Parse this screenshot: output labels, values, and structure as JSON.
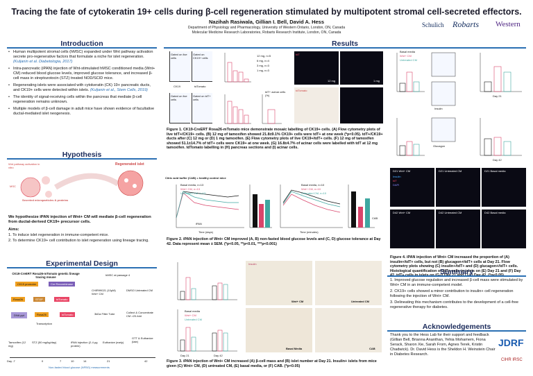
{
  "header": {
    "title": "Tracing the fate of cytokeratin 19+ cells during β-cell regeneration stimulated by multipotent stromal cell-secreted effectors.",
    "authors": "Nazihah Rasiwala, Gillian I. Bell, David A. Hess",
    "affiliation1": "Department of Physiology and Pharmacology, University of Western Ontario, London, ON, Canada",
    "affiliation2": "Molecular Medicine Research Laboratories, Robarts Research Institute, London, ON, Canada",
    "logos": [
      "Schulich",
      "Robarts",
      "Western"
    ]
  },
  "sections": {
    "introduction": "Introduction",
    "hypothesis": "Hypothesis",
    "experimental_design": "Experimental Design",
    "results": "Results",
    "summary": "Summary",
    "acknowledgements": "Acknowledgements"
  },
  "introduction": {
    "bullets": [
      "Human multipotent stromal cells (hMSC) expanded under Wnt pathway activation secrete pro-regenerative factors that formulate a niche for islet regeneration.",
      "Intra-pancreatic (iPAN) injection of Wnt-stimulated hMSC conditioned media (Wnt+ CM) reduced blood glucose levels, improved glucose tolerance, and increased β-cell mass in streptozotocin (STZ) treated NOD/SCID mice.",
      "Regenerating islets were associated with cytokeratin (CK) 19+ pancreatic ducts, and CK19+ cells were detected within islets.",
      "The identity of signal-receiving cells within the pancreas that mediate β-cell regeneration remains unknown.",
      "Multiple models of β-cell damage in adult mice have shown evidence of facultative ductal-mediated islet neogenesis."
    ],
    "refs": [
      "(Kuljanin et al. Diabetologia, 2017)",
      "(Kuljanin et al., Stem Cells, 2019)"
    ]
  },
  "hypothesis": {
    "diagram_labels": [
      "Wnt pathway activation in vitro",
      "MSC",
      "Secreted microparticles & proteins",
      "Regenerated islet"
    ],
    "statement": "We hypothesize iPAN injection of Wnt+ CM will mediate β-cell regeneration from ductal-derived CK19+ precursor cells.",
    "aims_title": "Aims:",
    "aims": [
      "1.  To induce islet regeneration in immune-competent mice.",
      "2.  To determine CK19+ cell contribution to islet regeneration using lineage tracing."
    ]
  },
  "exp_design": {
    "mouse_title": "CK19-CreERT Rosa26-mTomato genetic lineage tracing mouse",
    "construct": [
      "CK19 promoter",
      "Cre Recombinase",
      "Rosa26",
      "STOP",
      "tdTomato",
      "DNA ppt",
      "Rosa26",
      "tdTomato"
    ],
    "construct_note": "Transcription",
    "cm_steps": [
      "hMSC at passage 4",
      "CHIR99021 (10μM) Wnt+ CM",
      "DMSO Untreated CM",
      "3kDa Filter Tube",
      "Collect & Concentrate CM >20-fold"
    ],
    "timeline_top": [
      "Tamoxifen (12 mg)",
      "STZ (50 mg/kg/day)",
      "iPAN injection (2-4 μg protein)",
      "Euthanize (early)",
      "GTT & Euthanize (late)"
    ],
    "timeline_days": [
      "Day -7",
      "0",
      "7",
      "10",
      "14",
      "21",
      "42"
    ],
    "timeline_bottom": "Non-fasted blood glucose (NFBG) measurements"
  },
  "figure1": {
    "flow_labels": [
      "Gated on live cells",
      "Gated on CK19+ cells",
      "Gated on live cells",
      "Gated on tdT+ cells",
      "CK19",
      "tdTomato",
      "Side Scatter"
    ],
    "legend": [
      "12 mg, n=5",
      "6 mg, n=4",
      "3 mg, n=3",
      "1 mg, n=3"
    ],
    "ylabels": [
      "tdT+/CK19+ cells (%)",
      "CK19+/tdT+ cells (%)",
      "tdT+ acinar cells (%)"
    ],
    "xlabels": [
      "12 mg",
      "6 mg",
      "3 mg",
      "1 mg"
    ],
    "micro_labels": [
      "Insulin",
      "CK19",
      "tdT",
      "DAPI",
      "12 mg",
      "1 mg",
      "tdTomato"
    ],
    "caption": "Figure 1. CK19-CreERT Rosa26-mTomato mice demonstrate mosaic labelling of CK19+ cells. (A) Flow cytometry plots of live tdT+/CK19+ cells. (B) 12 mg of tamoxifen showed 21.8±9.1% CK19+ cells were tdT+ at one week (*p<0.05). tdT+/CK19+ ducts after (C) 12 mg or (D) 1 mg tamoxifen. (E) Flow cytometry plots of live CK19+/tdT+ cells. (F) 12 mg of tamoxifen showed 51.1±14.7% of tdT+ cells were CK19+ at one week. (G) 16.8±4.7% of acinar cells were labelled with tdT at 12 mg tamoxifen. tdTomato labelling in (H) pancreas sections and (I) acinar cells."
  },
  "figure2": {
    "banner": "Citric acid buffer (CAB) = healthy control mice",
    "legend_a": [
      "Basal media, n=13",
      "Wnt+ CM, n=13",
      "Untreated CM, n=13"
    ],
    "legend_c": [
      "Basal media, n=10",
      "Wnt+ CM, n=10",
      "Untreated CM, n=10"
    ],
    "a_ylabel": "Blood glucose (mmol/L)",
    "a_xlabel": "Time (days)",
    "c_ylabel": "Blood Glucose (mmol/L)",
    "c_xlabel": "Time (minutes)",
    "b_ylabel": "A.U.C. (mmol/L x day)",
    "d_ylabel": "A.U.C. (mmol/L x min)",
    "annot": [
      "iPAN",
      "CAB",
      "CAB"
    ],
    "caption": "Figure 2. iPAN injection of Wnt+ CM improved (A, B) non-fasted blood glucose levels and (C, D) glucose tolerance at Day 42. Data represent mean ± SEM. (*p<0.05, **p<0.01, ***p<0.001)"
  },
  "figure3": {
    "a_ylabel": "Beta cell mass (mg)",
    "b_ylabel": "#Insulin+ islets/mm²",
    "legend": [
      "Basal media",
      "Wnt+ CM",
      "Untreated CM"
    ],
    "xlabels": [
      "Day 21",
      "Day 42"
    ],
    "micro_labels": [
      "Insulin",
      "Wnt+ CM",
      "Untreated CM",
      "Basal Media",
      "CAB"
    ],
    "caption": "Figure 3. iPAN injection of Wnt+ CM increased (A) β-cell mass and (B) islet number at Day 21. Insulin+ islets from mice given (C) Wnt+ CM, (D) untreated CM, (E) basal media, or (F) CAB. (*p<0.05)"
  },
  "figure4": {
    "legend": [
      "Basal media",
      "Wnt+ CM",
      "Untreated CM"
    ],
    "ylabels": [
      "Insulin+/tdTomato+ cells (%)",
      "Glucagon+/tdTomato+ cells (%)",
      "tdT+/INS+ total cells (%)",
      "tdT+/GCG+ total cells (%)"
    ],
    "xlabels": [
      "Day 21",
      "Day 42"
    ],
    "flow_labels": [
      "Side Scatter",
      "tdTomato",
      "Insulin",
      "Glucagon",
      "Gated on tdT+ cells"
    ],
    "micro_titles": [
      "D21 Wnt+ CM",
      "D21 Untreated CM",
      "D21 Basal media",
      "D42 Wnt+ CM",
      "D42 Untreated CM",
      "D42 Basal media"
    ],
    "micro_labels": [
      "Insulin",
      "tdT",
      "DAPI"
    ],
    "caption": "Figure 4. iPAN injection of Wnt+ CM increased the proportion of (A) insulin+/tdT+ cells, but not (B) glucagon+/tdT+ cells at Day 21. Flow cytometry plots showing (C) insulin+/tdT+ and (D) glucagon+/tdT+ cells. Histological quantification of tdT+ cells in islets on (E) Day 21 and (F) Day 42. tdT+ cells in islets on (G-I) Day 21 and (J-L) Day 42. (*p<0.05)"
  },
  "summary": {
    "items": [
      "1.  Improved glucose regulation and increased β-cell mass were stimulated by Wnt+ CM in an immune-competent model.",
      "2.  CK19+ cells showed a minor contribution to insulin+ cell regeneration following the injection of Wnt+ CM.",
      "3.  Delineating this mechanism contributes to the development of a cell-free regenerative therapy for diabetes."
    ]
  },
  "acknowledgements": {
    "text": "Thank you to the Hess Lab for their support and feedback (Gillian Bell, Brianna Ananthan, Yehia Mohamem, Fiona Serack, Sharon Xie, Sarah From, Agnes Terek, Kristin Chadwick). Dr. David Hess is the Sheldon H. Weinstein Chair in Diabetes Research.",
    "logos": [
      "JDRF",
      "CIHR IRSC"
    ]
  },
  "colors": {
    "section": "#1a2a5a",
    "bar": "#2a6fb3",
    "basal": "#111111",
    "wnt": "#d9456b",
    "untreated": "#3fa7a1"
  }
}
